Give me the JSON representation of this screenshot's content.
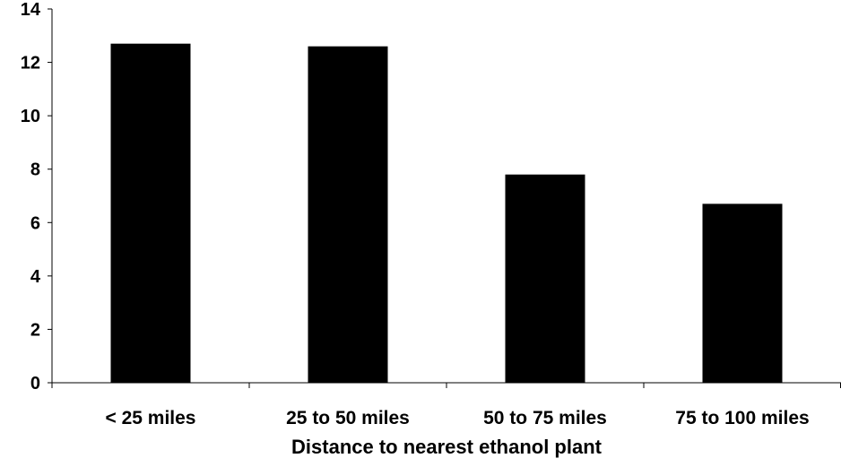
{
  "chart_data": {
    "type": "bar",
    "categories": [
      "< 25 miles",
      "25 to 50 miles",
      "50 to 75 miles",
      "75 to 100 miles"
    ],
    "values": [
      12.7,
      12.6,
      7.8,
      6.7
    ],
    "title": "",
    "xlabel": "Distance to nearest ethanol plant",
    "ylabel": "",
    "ylim": [
      0,
      14
    ],
    "yticks": [
      0,
      2,
      4,
      6,
      8,
      10,
      12,
      14
    ],
    "grid": false,
    "legend": "none",
    "bar_color": "#000000"
  }
}
